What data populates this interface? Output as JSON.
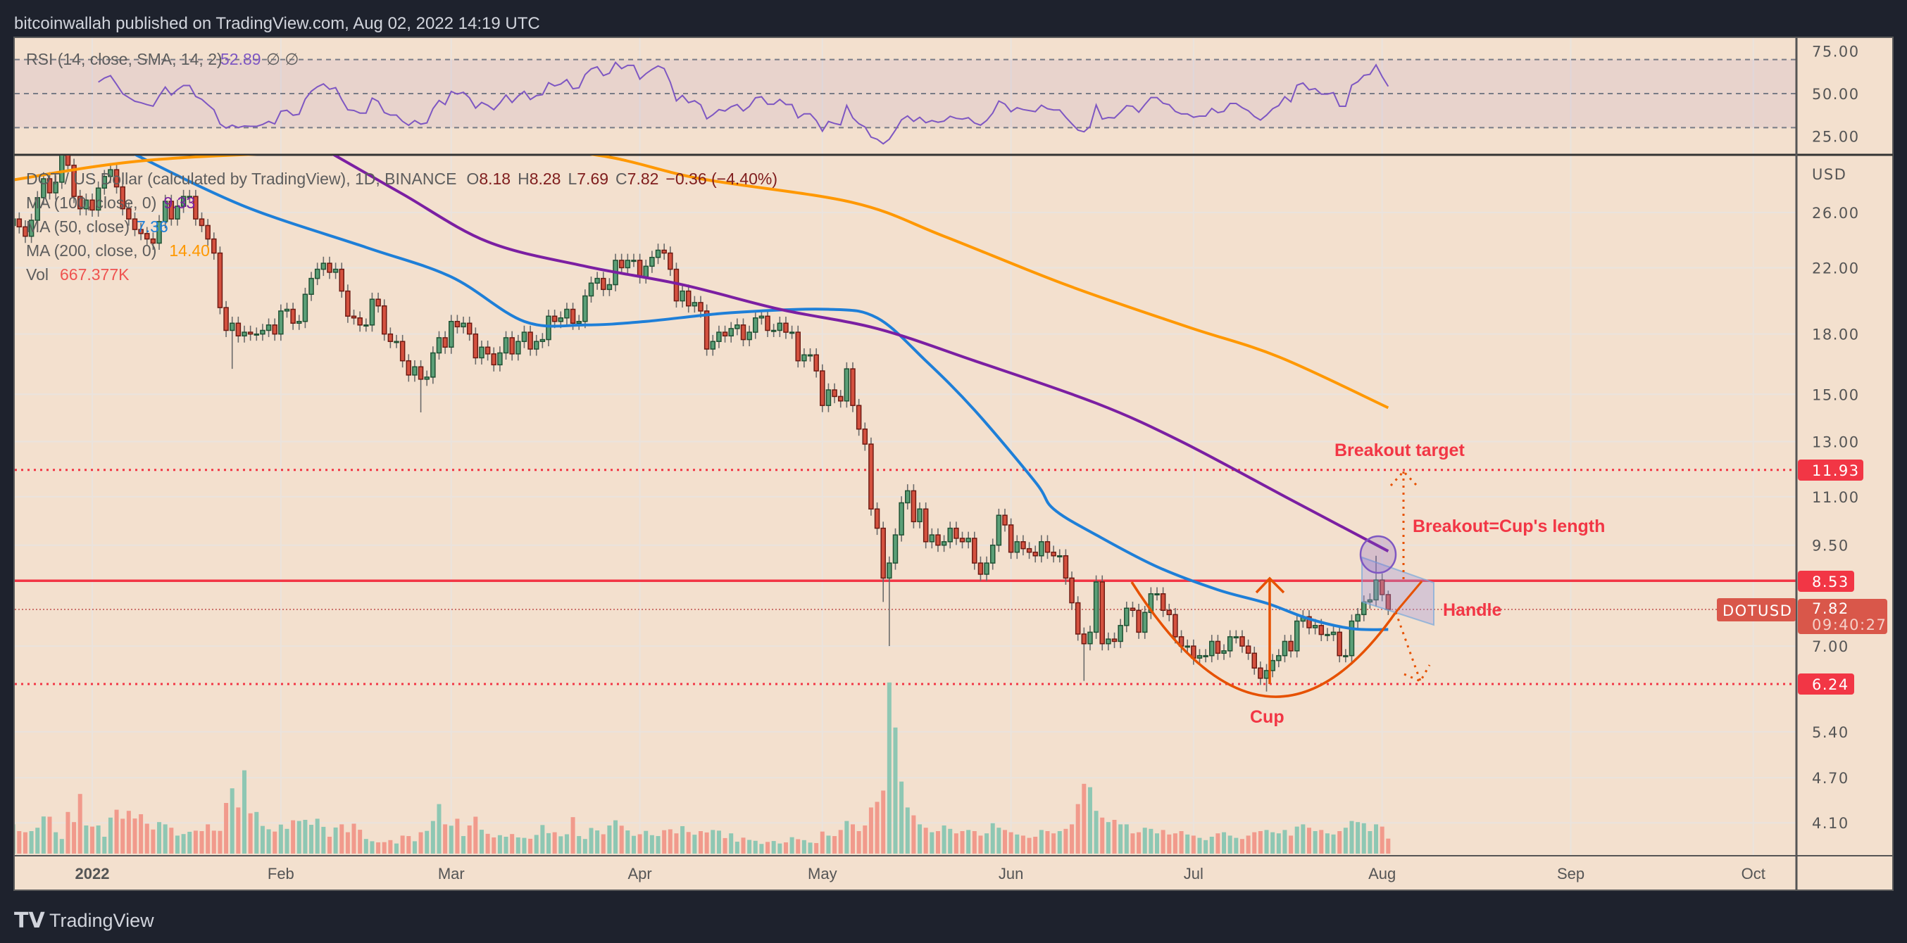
{
  "header": {
    "title": "bitcoinwallah published on TradingView.com, Aug 02, 2022 14:19 UTC"
  },
  "footer": {
    "logo_text": "TradingView"
  },
  "rsi_legend": {
    "label": "RSI (14, close, SMA, 14, 2)",
    "value": "52.89",
    "extra": "∅ ∅"
  },
  "main_legend": {
    "symbol": "DOT / US Dollar (calculated by TradingView), 1D, BINANCE",
    "ohlc": [
      {
        "k": "O",
        "v": "8.18"
      },
      {
        "k": "H",
        "v": "8.28"
      },
      {
        "k": "L",
        "v": "7.69"
      },
      {
        "k": "C",
        "v": "7.82"
      }
    ],
    "change": "−0.36 (−4.40%)",
    "ma100": {
      "label": "MA (100, close, 0)",
      "value": "9.33"
    },
    "ma50": {
      "label": "MA (50, close)",
      "value": "7.36"
    },
    "ma200": {
      "label": "MA (200, close, 0)",
      "value": "14.40"
    },
    "vol": {
      "label": "Vol",
      "value": "667.377K"
    }
  },
  "colors": {
    "background": "#f3e0ce",
    "up": "#5b9f77",
    "down": "#d4513f",
    "vol_up": "#8ec7b3",
    "vol_down": "#f19a8c",
    "ma50": "#1e7fd8",
    "ma100": "#7b1fa2",
    "ma200": "#ff9800",
    "rsi": "#7e57c2",
    "annotation": "#f23645",
    "cup": "#e65100"
  },
  "chart_data": {
    "type": "candlestick",
    "title": "DOT / US Dollar, 1D, BINANCE",
    "start_date": "2021-12-19",
    "first_open": 25.0,
    "price_scale": "log",
    "closes": [
      25.5,
      24.9,
      24.2,
      25.4,
      27.2,
      28.8,
      27.6,
      28.5,
      31.0,
      30.0,
      27.3,
      26.3,
      27.0,
      26.2,
      28.0,
      29.0,
      29.6,
      28.1,
      26.3,
      25.5,
      24.7,
      24.4,
      24.0,
      23.7,
      25.3,
      26.9,
      25.5,
      26.5,
      27.3,
      27.3,
      25.5,
      25.0,
      24.0,
      23.0,
      19.5,
      18.2,
      18.6,
      17.9,
      18.1,
      18.0,
      18.0,
      18.2,
      18.5,
      18.0,
      19.3,
      19.4,
      18.6,
      18.7,
      20.3,
      21.3,
      21.9,
      22.3,
      21.7,
      21.9,
      20.5,
      19.0,
      18.9,
      18.5,
      18.5,
      20.0,
      19.6,
      18.0,
      17.6,
      17.6,
      16.6,
      15.9,
      16.3,
      15.7,
      15.8,
      17.0,
      17.8,
      17.3,
      18.7,
      18.4,
      18.6,
      18.0,
      16.75,
      17.3,
      16.95,
      16.4,
      17.0,
      17.8,
      16.95,
      17.6,
      18.1,
      17.2,
      17.6,
      17.7,
      19.0,
      18.7,
      18.9,
      19.4,
      18.6,
      18.7,
      20.2,
      21.0,
      21.3,
      20.6,
      20.9,
      22.5,
      22.0,
      22.5,
      22.5,
      21.4,
      22.1,
      22.7,
      23.2,
      23.0,
      21.9,
      19.9,
      20.5,
      19.6,
      19.8,
      19.3,
      17.2,
      17.6,
      18.1,
      17.9,
      18.3,
      18.5,
      17.7,
      18.1,
      18.9,
      19.0,
      18.2,
      18.2,
      18.6,
      18.1,
      18.1,
      16.6,
      16.9,
      16.9,
      16.1,
      14.5,
      15.2,
      14.9,
      14.7,
      16.2,
      14.5,
      13.5,
      12.9,
      10.6,
      10.0,
      8.6,
      9.0,
      9.8,
      10.8,
      11.2,
      10.2,
      10.6,
      9.6,
      9.8,
      9.5,
      9.6,
      10.0,
      9.7,
      9.6,
      9.7,
      9.0,
      8.7,
      9.0,
      9.5,
      10.4,
      10.1,
      9.3,
      9.6,
      9.4,
      9.3,
      9.2,
      9.6,
      9.3,
      9.2,
      9.2,
      8.6,
      7.98,
      7.26,
      7.05,
      7.3,
      8.5,
      7.05,
      7.15,
      7.1,
      7.45,
      7.85,
      7.8,
      7.3,
      7.75,
      8.2,
      8.2,
      7.8,
      7.7,
      7.2,
      7.0,
      7.0,
      6.75,
      6.8,
      6.8,
      7.1,
      6.85,
      6.9,
      7.2,
      7.2,
      7.0,
      6.85,
      6.55,
      6.35,
      6.5,
      6.7,
      6.8,
      7.1,
      6.9,
      7.55,
      7.65,
      7.4,
      7.45,
      7.25,
      7.25,
      7.3,
      6.8,
      6.8,
      7.55,
      7.7,
      8.0,
      8.05,
      8.55,
      8.18,
      7.82
    ],
    "volumes_k": [
      1300,
      1000,
      950,
      1000,
      1150,
      1650,
      1640,
      950,
      650,
      1850,
      1400,
      2650,
      1250,
      1200,
      1250,
      750,
      1600,
      1950,
      1550,
      1900,
      1560,
      1750,
      1330,
      1070,
      1400,
      1300,
      1150,
      800,
      870,
      970,
      1020,
      1000,
      1300,
      1020,
      1010,
      2250,
      2900,
      2050,
      3700,
      1790,
      1850,
      1230,
      1080,
      980,
      1290,
      1100,
      1480,
      1450,
      1500,
      1280,
      1550,
      1190,
      750,
      1160,
      1300,
      950,
      1330,
      1060,
      650,
      550,
      500,
      510,
      600,
      450,
      800,
      780,
      550,
      950,
      1010,
      1450,
      2200,
      1300,
      1240,
      1550,
      780,
      1250,
      1640,
      1060,
      880,
      720,
      820,
      750,
      870,
      720,
      700,
      660,
      830,
      1270,
      910,
      950,
      770,
      860,
      1620,
      780,
      650,
      1140,
      1030,
      860,
      1250,
      1480,
      1240,
      1030,
      790,
      860,
      1010,
      820,
      780,
      1040,
      1080,
      900,
      1220,
      960,
      840,
      1000,
      940,
      1050,
      1020,
      690,
      900,
      530,
      710,
      610,
      570,
      430,
      520,
      560,
      450,
      500,
      730,
      640,
      600,
      490,
      470,
      980,
      800,
      780,
      1050,
      1450,
      1300,
      1000,
      1250,
      2050,
      2300,
      2800,
      7600,
      5600,
      3200,
      2050,
      1700,
      1300,
      1150,
      950,
      1000,
      1250,
      1100,
      900,
      1000,
      1050,
      1000,
      800,
      900,
      1350,
      1150,
      1050,
      950,
      850,
      800,
      700,
      750,
      1050,
      1000,
      900,
      1000,
      1100,
      1300,
      2200,
      3100,
      2950,
      1900,
      1600,
      1400,
      1500,
      1300,
      1300,
      900,
      950,
      1150,
      1100,
      900,
      1050,
      850,
      900,
      1000,
      850,
      800,
      700,
      600,
      750,
      900,
      950,
      800,
      700,
      650,
      800,
      950,
      1000,
      1050,
      950,
      900,
      1050,
      800,
      1200,
      1300,
      1150,
      1000,
      1050,
      900,
      850,
      1000,
      1150,
      1450,
      1400,
      1350,
      1000,
      1300,
      1200,
      667.377
    ],
    "wick_overrides": [
      {
        "date": "2022-01-24",
        "low": 16.2
      },
      {
        "date": "2022-02-24",
        "low": 14.2
      },
      {
        "date": "2022-05-11",
        "low": 8.0
      },
      {
        "date": "2022-05-12",
        "low": 7.0
      },
      {
        "date": "2022-06-13",
        "low": 6.3
      },
      {
        "date": "2022-07-13",
        "low": 6.1
      },
      {
        "date": "2022-07-31",
        "high": 9.2
      },
      {
        "date": "2022-08-02",
        "high": 8.28,
        "low": 7.69
      }
    ],
    "moving_averages": [
      {
        "name": "MA 50",
        "color": "#1e7fd8",
        "points": [
          [
            7,
            31.0
          ],
          [
            25,
            26.5
          ],
          [
            45,
            23.4
          ],
          [
            59,
            21.4
          ],
          [
            71,
            18.7
          ],
          [
            81,
            18.5
          ],
          [
            91,
            18.7
          ],
          [
            105,
            19.2
          ],
          [
            121,
            19.4
          ],
          [
            129,
            18.9
          ],
          [
            137,
            16.6
          ],
          [
            145,
            14.3
          ],
          [
            155,
            11.5
          ],
          [
            158,
            10.6
          ],
          [
            165,
            9.8
          ],
          [
            175,
            8.9
          ],
          [
            185,
            8.3
          ],
          [
            193,
            7.97
          ],
          [
            200,
            7.6
          ],
          [
            207,
            7.38
          ],
          [
            213,
            7.36
          ]
        ]
      },
      {
        "name": "MA 100",
        "color": "#7b1fa2",
        "points": [
          [
            39,
            31.2
          ],
          [
            51,
            27.5
          ],
          [
            65,
            23.8
          ],
          [
            81,
            22.1
          ],
          [
            97,
            20.9
          ],
          [
            113,
            19.4
          ],
          [
            129,
            18.3
          ],
          [
            145,
            16.6
          ],
          [
            165,
            14.6
          ],
          [
            179,
            13.0
          ],
          [
            197,
            10.9
          ],
          [
            213,
            9.33
          ]
        ]
      },
      {
        "name": "MA 200",
        "color": "#ff9800",
        "points": [
          [
            -13,
            28.7
          ],
          [
            10,
            30.5
          ],
          [
            45,
            31.3
          ],
          [
            79,
            31.2
          ],
          [
            100,
            28.8
          ],
          [
            125,
            26.8
          ],
          [
            140,
            24.2
          ],
          [
            160,
            20.9
          ],
          [
            180,
            18.4
          ],
          [
            195,
            16.8
          ],
          [
            213,
            14.4
          ]
        ]
      }
    ],
    "price_ticks": [
      "26.00",
      "22.00",
      "18.00",
      "15.00",
      "13.00",
      "11.00",
      "9.50",
      "7.00",
      "5.40",
      "4.70",
      "4.10"
    ],
    "price_unit": "USD",
    "rsi_ticks": [
      "75.00",
      "50.00",
      "25.00"
    ],
    "rsi_bands": [
      70,
      50,
      30
    ],
    "time_ticks": [
      {
        "label": "2022",
        "day": 0,
        "bold": true
      },
      {
        "label": "Feb",
        "day": 31
      },
      {
        "label": "Mar",
        "day": 59
      },
      {
        "label": "Apr",
        "day": 90
      },
      {
        "label": "May",
        "day": 120
      },
      {
        "label": "Jun",
        "day": 151
      },
      {
        "label": "Jul",
        "day": 181
      },
      {
        "label": "Aug",
        "day": 212
      },
      {
        "label": "Sep",
        "day": 243
      },
      {
        "label": "Oct",
        "day": 273
      }
    ],
    "levels": {
      "target": {
        "price": 11.93,
        "label": "11.93"
      },
      "resistance": {
        "price": 8.53,
        "label": "8.53"
      },
      "support": {
        "price": 6.24,
        "label": "6.24"
      },
      "last": {
        "price": 7.82,
        "label": "7.82",
        "countdown": "09:40:27",
        "symbol": "DOTUSD"
      }
    },
    "annotations": {
      "breakout_target": "Breakout target",
      "breakout_length": "Breakout=Cup's length",
      "handle": "Handle",
      "cup": "Cup"
    }
  }
}
